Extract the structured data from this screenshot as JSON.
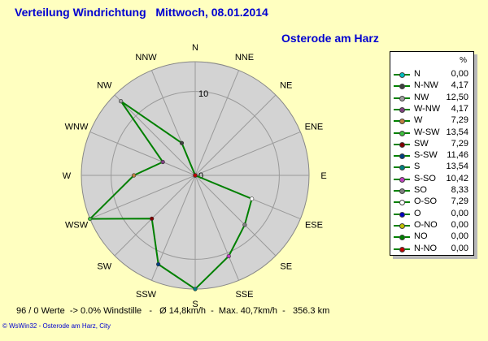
{
  "header": {
    "title": "Verteilung Windrichtung   Mittwoch, 08.01.2014",
    "location": "Osterode am Harz"
  },
  "chart_data": {
    "type": "radar",
    "directions": [
      "N",
      "NNE",
      "NE",
      "ENE",
      "E",
      "ESE",
      "SE",
      "SSE",
      "S",
      "SSW",
      "SW",
      "WSW",
      "W",
      "WNW",
      "NW",
      "NNW"
    ],
    "values": [
      0.0,
      0.0,
      0.0,
      0.0,
      0.0,
      7.29,
      8.33,
      10.42,
      13.54,
      11.46,
      7.29,
      13.54,
      7.29,
      4.17,
      12.5,
      4.17
    ],
    "rmax": 13.54,
    "ring_label": "10",
    "center_label": "0",
    "series_color": "#008000"
  },
  "legend": {
    "unit": "%",
    "items": [
      {
        "name": "N",
        "value": "0,00",
        "color": "#00c0c0"
      },
      {
        "name": "N-NW",
        "value": "4,17",
        "color": "#404040"
      },
      {
        "name": "NW",
        "value": "12,50",
        "color": "#a0a0a0"
      },
      {
        "name": "W-NW",
        "value": "4,17",
        "color": "#804080"
      },
      {
        "name": "W",
        "value": "7,29",
        "color": "#c08040"
      },
      {
        "name": "W-SW",
        "value": "13,54",
        "color": "#40c040"
      },
      {
        "name": "SW",
        "value": "7,29",
        "color": "#800000"
      },
      {
        "name": "S-SW",
        "value": "11,46",
        "color": "#004080"
      },
      {
        "name": "S",
        "value": "13,54",
        "color": "#008080"
      },
      {
        "name": "S-SO",
        "value": "10,42",
        "color": "#c040c0"
      },
      {
        "name": "SO",
        "value": "8,33",
        "color": "#808080"
      },
      {
        "name": "O-SO",
        "value": "7,29",
        "color": "#ffffff"
      },
      {
        "name": "O",
        "value": "0,00",
        "color": "#0000c0"
      },
      {
        "name": "O-NO",
        "value": "0,00",
        "color": "#c0c000"
      },
      {
        "name": "NO",
        "value": "0,00",
        "color": "#008000"
      },
      {
        "name": "N-NO",
        "value": "0,00",
        "color": "#c00000"
      }
    ]
  },
  "footer": {
    "stats": "96 / 0 Werte  -> 0.0% Windstille   -   Ø 14,8km/h  -  Max. 40,7km/h  -   356.3 km",
    "credit": "© WsWin32  -  Osterode am Harz, City"
  }
}
